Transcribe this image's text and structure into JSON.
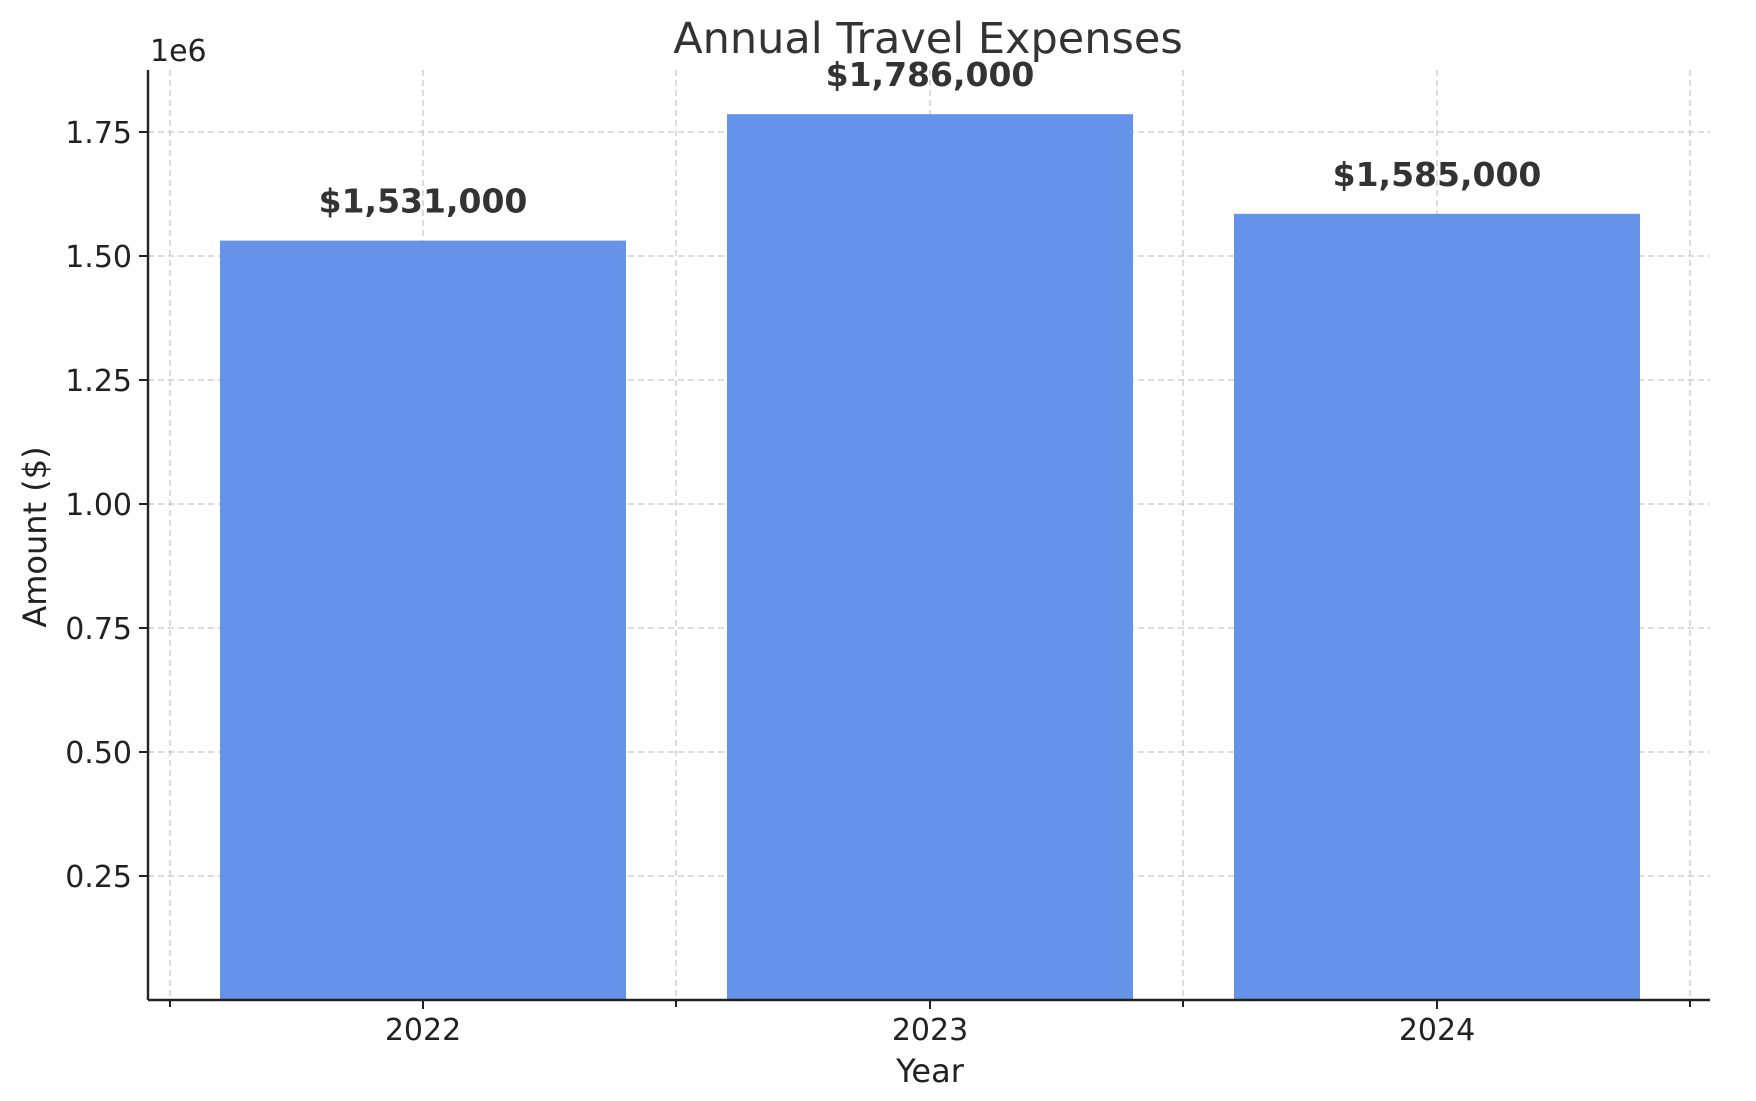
{
  "chart_data": {
    "type": "bar",
    "title": "Annual Travel Expenses",
    "xlabel": "Year",
    "ylabel": "Amount ($)",
    "y_offset_label": "1e6",
    "categories": [
      "2022",
      "2023",
      "2024"
    ],
    "values": [
      1531000,
      1786000,
      1585000
    ],
    "data_labels": [
      "$1,531,000",
      "$1,786,000",
      "$1,585,000"
    ],
    "ylim": [
      0,
      1875000
    ],
    "yticks": [
      250000,
      500000,
      750000,
      1000000,
      1250000,
      1500000,
      1750000
    ],
    "ytick_labels": [
      "0.25",
      "0.50",
      "0.75",
      "1.00",
      "1.25",
      "1.50",
      "1.75"
    ],
    "grid": true,
    "bar_color": "#6693ea"
  }
}
